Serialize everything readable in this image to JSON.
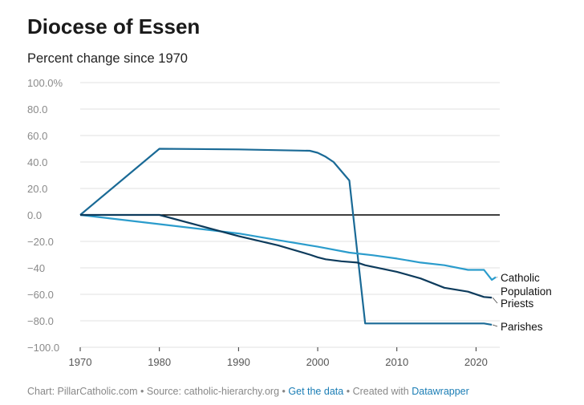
{
  "title": "Diocese of Essen",
  "subtitle": "Percent change since 1970",
  "footer": {
    "chart_credit": "Chart: PillarCatholic.com",
    "source": "Source: catholic-hierarchy.org",
    "get_data": "Get the data",
    "created_with_prefix": "Created with",
    "created_with_tool": "Datawrapper",
    "separator": "•"
  },
  "colors": {
    "parishes": "#1a6a96",
    "catholic_population": "#2b9ccc",
    "priests": "#0d3b5c",
    "zero_line": "#000000",
    "grid": "#e2e2e2",
    "tick_label": "#8a8a8a"
  },
  "chart_data": {
    "type": "line",
    "title": "Diocese of Essen",
    "subtitle": "Percent change since 1970",
    "xlim": [
      1970,
      2023
    ],
    "ylim": [
      -100,
      100
    ],
    "x_ticks": [
      {
        "value": 1970,
        "label": "1970"
      },
      {
        "value": 1980,
        "label": "1980"
      },
      {
        "value": 1990,
        "label": "1990"
      },
      {
        "value": 2000,
        "label": "2000"
      },
      {
        "value": 2010,
        "label": "2010"
      },
      {
        "value": 2020,
        "label": "2020"
      }
    ],
    "y_ticks": [
      {
        "value": 100,
        "label": "100.0%"
      },
      {
        "value": 80,
        "label": "80.0"
      },
      {
        "value": 60,
        "label": "60.0"
      },
      {
        "value": 40,
        "label": "40.0"
      },
      {
        "value": 20,
        "label": "20.0"
      },
      {
        "value": 0,
        "label": "0.0"
      },
      {
        "value": -20,
        "label": "−20.0"
      },
      {
        "value": -40,
        "label": "−40"
      },
      {
        "value": -60,
        "label": "−60.0"
      },
      {
        "value": -80,
        "label": "−80.0"
      },
      {
        "value": -100,
        "label": "−100.0"
      }
    ],
    "grid": true,
    "series": [
      {
        "key": "parishes",
        "name": "Parishes",
        "label_lines": [
          "Parishes"
        ],
        "points": [
          [
            1970,
            0
          ],
          [
            1980,
            50
          ],
          [
            1990,
            49.5
          ],
          [
            1999,
            48.5
          ],
          [
            2000,
            47
          ],
          [
            2001,
            44
          ],
          [
            2002,
            40
          ],
          [
            2004,
            26
          ],
          [
            2006,
            -82
          ],
          [
            2010,
            -82
          ],
          [
            2015,
            -82
          ],
          [
            2019,
            -82
          ],
          [
            2021,
            -82
          ],
          [
            2022,
            -83
          ]
        ]
      },
      {
        "key": "catholic_population",
        "name": "Catholic Population",
        "label_lines": [
          "Catholic",
          "Population"
        ],
        "points": [
          [
            1970,
            0
          ],
          [
            1980,
            -7
          ],
          [
            1990,
            -14
          ],
          [
            1995,
            -19
          ],
          [
            2000,
            -24
          ],
          [
            2004,
            -28.5
          ],
          [
            2007,
            -30.5
          ],
          [
            2010,
            -33
          ],
          [
            2013,
            -36
          ],
          [
            2016,
            -38
          ],
          [
            2019,
            -41.5
          ],
          [
            2021,
            -41.5
          ],
          [
            2022,
            -49
          ],
          [
            2022.5,
            -47
          ]
        ]
      },
      {
        "key": "priests",
        "name": "Priests",
        "label_lines": [
          "Priests"
        ],
        "points": [
          [
            1970,
            0
          ],
          [
            1980,
            0
          ],
          [
            1985,
            -8
          ],
          [
            1990,
            -16
          ],
          [
            1995,
            -23
          ],
          [
            1999,
            -30
          ],
          [
            2000,
            -32
          ],
          [
            2001,
            -33.5
          ],
          [
            2003,
            -35
          ],
          [
            2005,
            -36
          ],
          [
            2006,
            -38
          ],
          [
            2010,
            -43
          ],
          [
            2013,
            -48
          ],
          [
            2016,
            -55
          ],
          [
            2019,
            -58
          ],
          [
            2021,
            -62
          ],
          [
            2022,
            -62.5
          ]
        ]
      }
    ]
  }
}
